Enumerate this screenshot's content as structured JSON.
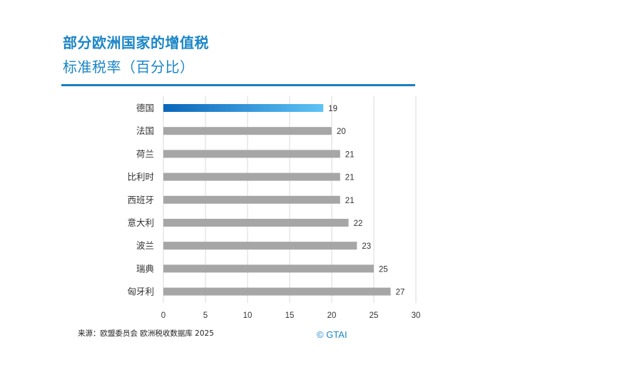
{
  "header": {
    "title": "部分欧洲国家的增值税",
    "subtitle": "标准税率（百分比）"
  },
  "footer": {
    "source": "来源：欧盟委员会 欧洲税收数据库 2025",
    "copyright": "© GTAI"
  },
  "colors": {
    "accent": "#1b86c7",
    "highlight_start": "#0a66b9",
    "highlight_end": "#5ec3f5",
    "bar": "#a6a6a6",
    "grid": "#d9d9d9"
  },
  "chart_data": {
    "type": "bar",
    "orientation": "horizontal",
    "title": "部分欧洲国家的增值税",
    "subtitle": "标准税率（百分比）",
    "categories": [
      "德国",
      "法国",
      "荷兰",
      "比利时",
      "西班牙",
      "意大利",
      "波兰",
      "瑞典",
      "匈牙利"
    ],
    "values": [
      19,
      20,
      21,
      21,
      21,
      22,
      23,
      25,
      27
    ],
    "highlighted": [
      "德国"
    ],
    "xlim": [
      0,
      30
    ],
    "xticks": [
      0,
      5,
      10,
      15,
      20,
      25,
      30
    ],
    "grid": true,
    "data_labels": true,
    "legend": "none"
  }
}
